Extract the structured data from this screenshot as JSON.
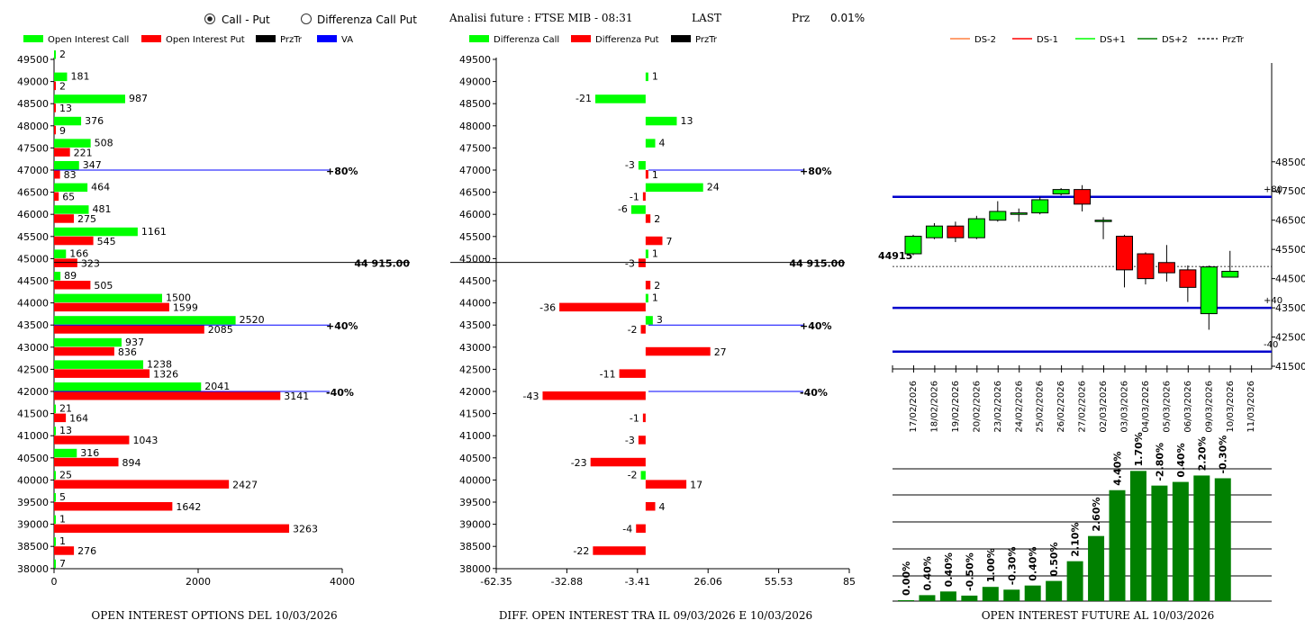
{
  "controls": {
    "radio_call_put": "Call - Put",
    "radio_diff": "Differenza Call Put",
    "selected": "call_put"
  },
  "header": {
    "title": "Analisi future : FTSE MIB - 08:31",
    "last_label": "LAST",
    "prz_label": "Prz",
    "prz_value": "0.01%"
  },
  "colors": {
    "green": "#00ff00",
    "red": "#ff0000",
    "blue": "#0000ff",
    "dark_green": "#008000",
    "dark_blue": "#0000cc"
  },
  "chart_data": [
    {
      "id": "oi",
      "type": "bar",
      "orientation": "horizontal",
      "title": "OPEN INTEREST OPTIONS DEL 10/03/2026",
      "legend": [
        "Open Interest Call",
        "Open Interest Put",
        "PrzTr",
        "VA"
      ],
      "strikes": [
        49500,
        49000,
        48500,
        48000,
        47500,
        47000,
        46500,
        46000,
        45500,
        45000,
        44500,
        44000,
        43500,
        43000,
        42500,
        42000,
        41500,
        41000,
        40500,
        40000,
        39500,
        39000,
        38500,
        38000
      ],
      "strike_labels": [
        "49500",
        "49000",
        "48500",
        "48000",
        "47500",
        "47000",
        "46500",
        "46000",
        "45500",
        "45000",
        "44500",
        "44000",
        "43500",
        "43000",
        "42500",
        "42000",
        "41500",
        "41000",
        "40500",
        "40000",
        "39500",
        "39000",
        "38500",
        "38000"
      ],
      "call": [
        2,
        181,
        987,
        376,
        508,
        347,
        464,
        481,
        1161,
        166,
        89,
        1500,
        2520,
        937,
        1238,
        2041,
        21,
        13,
        316,
        25,
        5,
        1,
        1,
        7
      ],
      "put": [
        null,
        2,
        13,
        9,
        221,
        83,
        65,
        275,
        545,
        323,
        505,
        1599,
        2085,
        836,
        1326,
        3141,
        164,
        1043,
        894,
        2427,
        1642,
        3263,
        276,
        null
      ],
      "x_ticks": [
        0,
        2000,
        4000
      ],
      "x_tick_labels": [
        "0",
        "2000",
        "4000"
      ],
      "xlim": [
        0,
        4000
      ],
      "lines": [
        {
          "label": "+80%",
          "strike": 47000,
          "color": "blue"
        },
        {
          "label": "44 915.00",
          "strike": 44915,
          "color": "black"
        },
        {
          "label": "+40%",
          "strike": 43500,
          "color": "blue"
        },
        {
          "label": "-40%",
          "strike": 42000,
          "color": "blue"
        }
      ]
    },
    {
      "id": "diff",
      "type": "bar",
      "orientation": "horizontal",
      "title": "DIFF. OPEN INTEREST TRA IL 09/03/2026 E 10/03/2026",
      "legend": [
        "Differenza Call",
        "Differenza Put",
        "PrzTr"
      ],
      "strikes": [
        49500,
        49000,
        48500,
        48000,
        47500,
        47000,
        46500,
        46000,
        45500,
        45000,
        44500,
        44000,
        43500,
        43000,
        42500,
        42000,
        41500,
        41000,
        40500,
        40000,
        39500,
        39000,
        38500,
        38000
      ],
      "call": [
        null,
        1,
        -21,
        13,
        4,
        -3,
        24,
        -6,
        null,
        1,
        null,
        1,
        3,
        null,
        null,
        null,
        null,
        null,
        null,
        -2,
        null,
        null,
        null,
        null
      ],
      "put": [
        null,
        null,
        null,
        null,
        null,
        1,
        -1,
        2,
        7,
        -3,
        2,
        -36,
        -2,
        27,
        -11,
        -43,
        -1,
        -3,
        -23,
        17,
        4,
        -4,
        -22,
        null
      ],
      "call_labels": [
        "",
        "1",
        "-21",
        "13",
        "4",
        "-3",
        "24",
        "-6",
        "",
        "1",
        "",
        "1",
        "3",
        "",
        "",
        "",
        "",
        "",
        "",
        "-2",
        "",
        "",
        "",
        ""
      ],
      "put_labels": [
        "",
        "",
        "",
        "",
        "",
        "1",
        "-1",
        "2",
        "7",
        "-3",
        "2",
        "-36",
        "-2",
        "27",
        "-11",
        "-43",
        "-1",
        "-3",
        "-23",
        "17",
        "4",
        "-4",
        "-22",
        ""
      ],
      "x_ticks": [
        -62.35,
        -32.88,
        -3.41,
        26.06,
        55.53,
        85
      ],
      "x_tick_labels": [
        "-62.35",
        "-32.88",
        "-3.41",
        "26.06",
        "55.53",
        "85"
      ],
      "xlim": [
        -62.35,
        85
      ],
      "lines": [
        {
          "label": "+80%",
          "strike": 47000,
          "color": "blue"
        },
        {
          "label": "44 915.00",
          "strike": 44915,
          "color": "black"
        },
        {
          "label": "+40%",
          "strike": 43500,
          "color": "blue"
        },
        {
          "label": "-40%",
          "strike": 42000,
          "color": "blue"
        }
      ]
    },
    {
      "id": "candles",
      "type": "candlestick",
      "legend": [
        "DS-2",
        "DS-1",
        "DS+1",
        "DS+2",
        "PrzTr"
      ],
      "dates": [
        "17/02/2026",
        "18/02/2026",
        "19/02/2026",
        "20/02/2026",
        "23/02/2026",
        "24/02/2026",
        "25/02/2026",
        "26/02/2026",
        "27/02/2026",
        "02/03/2026",
        "03/03/2026",
        "04/03/2026",
        "05/03/2026",
        "06/03/2026",
        "09/03/2026",
        "10/03/2026",
        "11/03/2026"
      ],
      "open": [
        45350,
        45900,
        46300,
        45900,
        46500,
        46700,
        46750,
        47400,
        47550,
        46500,
        45950,
        45350,
        45050,
        44800,
        43300,
        44550,
        null
      ],
      "close": [
        45950,
        46300,
        45900,
        46550,
        46800,
        46750,
        47200,
        47550,
        47050,
        46500,
        44800,
        44500,
        44700,
        44200,
        44900,
        44750,
        null
      ],
      "high": [
        46000,
        46400,
        46450,
        46650,
        47150,
        46900,
        47300,
        47600,
        47700,
        46600,
        46000,
        45400,
        45650,
        44950,
        44950,
        45450,
        null
      ],
      "low": [
        45300,
        45850,
        45750,
        45850,
        46450,
        46450,
        46700,
        47350,
        46800,
        45850,
        44200,
        44300,
        44400,
        43700,
        42750,
        44550,
        null
      ],
      "y_ticks": [
        41500,
        42500,
        43500,
        44500,
        45500,
        46500,
        47500,
        48500
      ],
      "y_tick_labels": [
        "41500",
        "42500",
        "43500",
        "44500",
        "45500",
        "46500",
        "47500",
        "48500"
      ],
      "ylim": [
        41500,
        48950
      ],
      "price": 44915,
      "price_label": "44915",
      "levels": [
        {
          "value": 47300,
          "label": "+80"
        },
        {
          "value": 43500,
          "label": "+40"
        },
        {
          "value": 42000,
          "label": "-40"
        }
      ]
    },
    {
      "id": "pct",
      "type": "bar",
      "title": "OPEN INTEREST FUTURE AL 10/03/2026",
      "labels": [
        "0.00%",
        "0.40%",
        "0.40%",
        "-0.50%",
        "1.00%",
        "-0.30%",
        "0.40%",
        "0.50%",
        "2.10%",
        "2.60%",
        "4.40%",
        "1.70%",
        "-2.80%",
        "0.40%",
        "2.20%",
        "-0.30%"
      ],
      "values": [
        100,
        650,
        1050,
        600,
        1550,
        1250,
        1700,
        2200,
        4350,
        7100,
        12100,
        14200,
        12600,
        13000,
        13700,
        13400
      ],
      "ylim": [
        0,
        16000
      ]
    }
  ]
}
